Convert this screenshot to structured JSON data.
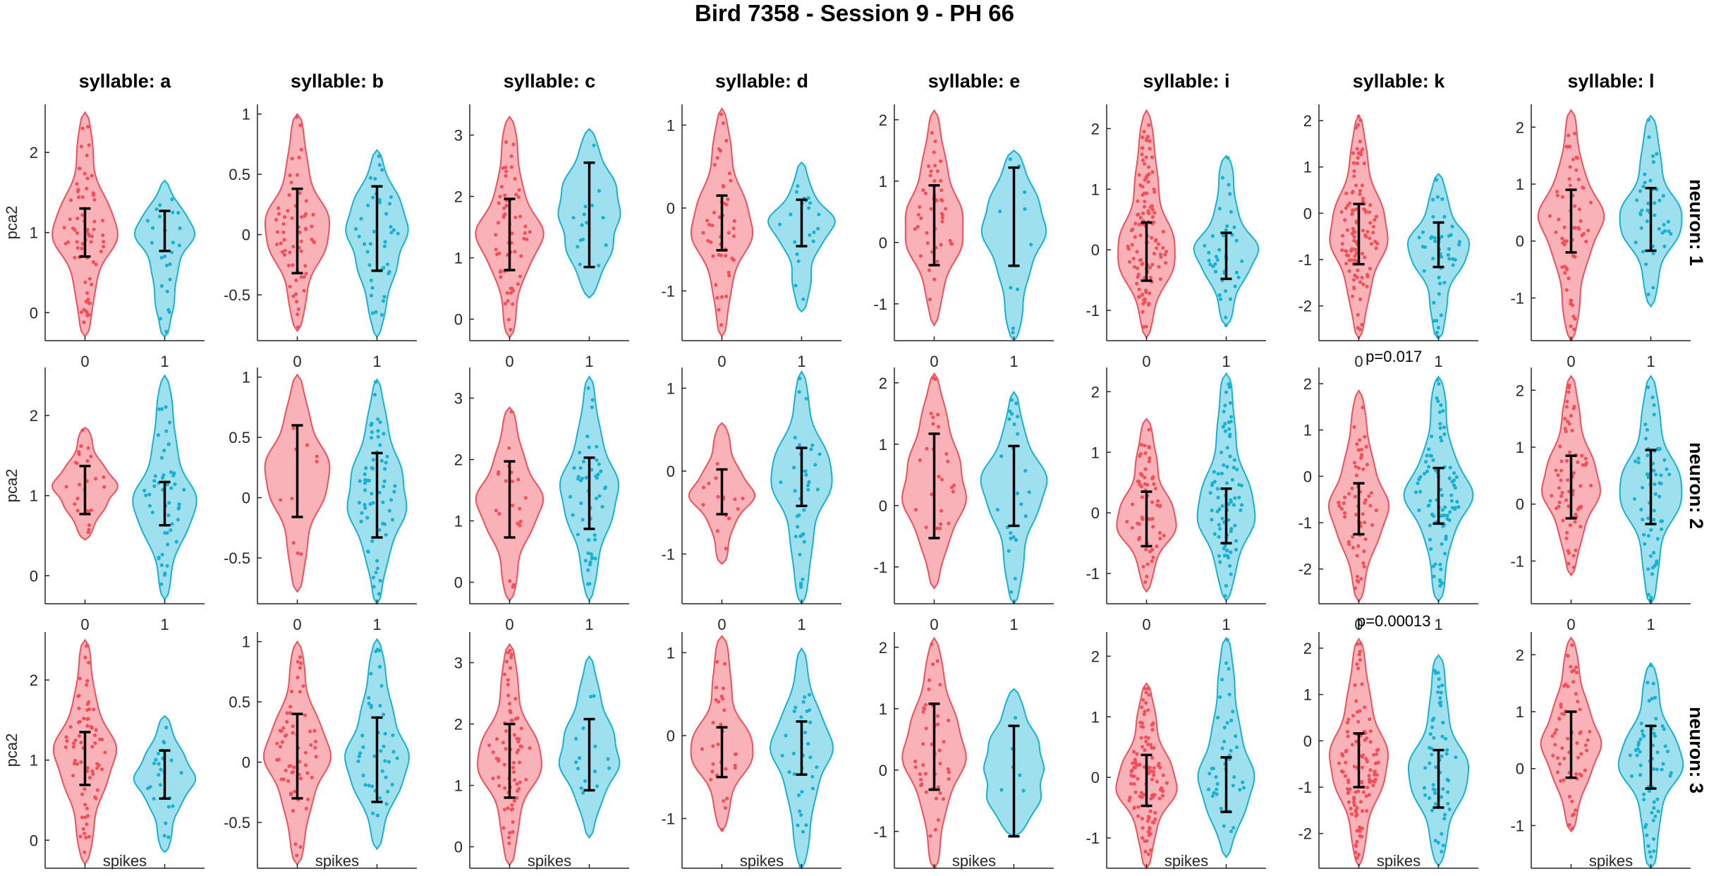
{
  "figure_title": "Bird 7358 - Session 9 - PH 66",
  "colors": {
    "group0_fill": "#f9b3b8",
    "group0_edge": "#f0505a",
    "group1_fill": "#9fe0ef",
    "group1_edge": "#1ab0cf",
    "error_bar": "#000000",
    "axis": "#262626"
  },
  "chart_data": {
    "type": "violin",
    "xlabel": "spikes",
    "ylabel": "pca2",
    "x_categories": [
      "0",
      "1"
    ],
    "columns": [
      "syllable: a",
      "syllable: b",
      "syllable: c",
      "syllable: d",
      "syllable: e",
      "syllable: i",
      "syllable: k",
      "syllable: l"
    ],
    "rows": [
      "neuron: 1",
      "neuron: 2",
      "neuron: 3"
    ],
    "panels": [
      [
        {
          "ylim": [
            -0.35,
            2.6
          ],
          "yticks": [
            0,
            1,
            2
          ],
          "groups": [
            {
              "mean": 1.0,
              "err": 0.3,
              "min": -0.3,
              "max": 2.5,
              "n": 70
            },
            {
              "mean": 1.02,
              "err": 0.25,
              "min": -0.3,
              "max": 1.65,
              "n": 25
            }
          ],
          "p": ""
        },
        {
          "ylim": [
            -0.88,
            1.08
          ],
          "yticks": [
            -0.5,
            0,
            0.5,
            1
          ],
          "groups": [
            {
              "mean": 0.03,
              "err": 0.35,
              "min": -0.8,
              "max": 1.0,
              "n": 60
            },
            {
              "mean": 0.05,
              "err": 0.35,
              "min": -0.85,
              "max": 0.7,
              "n": 40
            }
          ],
          "p": ""
        },
        {
          "ylim": [
            -0.35,
            3.5
          ],
          "yticks": [
            0,
            1,
            2,
            3
          ],
          "groups": [
            {
              "mean": 1.38,
              "err": 0.58,
              "min": -0.3,
              "max": 3.3,
              "n": 60
            },
            {
              "mean": 1.7,
              "err": 0.85,
              "min": 0.35,
              "max": 3.1,
              "n": 15
            }
          ],
          "p": ""
        },
        {
          "ylim": [
            -1.6,
            1.25
          ],
          "yticks": [
            -1,
            0,
            1
          ],
          "groups": [
            {
              "mean": -0.18,
              "err": 0.33,
              "min": -1.55,
              "max": 1.2,
              "n": 45
            },
            {
              "mean": -0.18,
              "err": 0.28,
              "min": -1.25,
              "max": 0.55,
              "n": 20
            }
          ],
          "p": ""
        },
        {
          "ylim": [
            -1.6,
            2.25
          ],
          "yticks": [
            -1,
            0,
            1,
            2
          ],
          "groups": [
            {
              "mean": 0.28,
              "err": 0.65,
              "min": -1.35,
              "max": 2.15,
              "n": 45
            },
            {
              "mean": 0.42,
              "err": 0.8,
              "min": -1.6,
              "max": 1.5,
              "n": 10
            }
          ],
          "p": ""
        },
        {
          "ylim": [
            -1.5,
            2.4
          ],
          "yticks": [
            -1,
            0,
            1,
            2
          ],
          "groups": [
            {
              "mean": -0.03,
              "err": 0.48,
              "min": -1.45,
              "max": 2.3,
              "n": 120
            },
            {
              "mean": -0.1,
              "err": 0.38,
              "min": -1.25,
              "max": 1.55,
              "n": 40
            }
          ],
          "p": ""
        },
        {
          "ylim": [
            -2.75,
            2.35
          ],
          "yticks": [
            -2,
            -1,
            0,
            1,
            2
          ],
          "groups": [
            {
              "mean": -0.45,
              "err": 0.65,
              "min": -2.7,
              "max": 2.1,
              "n": 110
            },
            {
              "mean": -0.68,
              "err": 0.48,
              "min": -2.7,
              "max": 0.85,
              "n": 45
            }
          ],
          "p": ""
        },
        {
          "ylim": [
            -1.75,
            2.4
          ],
          "yticks": [
            -1,
            0,
            1,
            2
          ],
          "groups": [
            {
              "mean": 0.35,
              "err": 0.55,
              "min": -1.75,
              "max": 2.3,
              "n": 60
            },
            {
              "mean": 0.38,
              "err": 0.55,
              "min": -1.15,
              "max": 2.2,
              "n": 40
            }
          ],
          "p": ""
        }
      ],
      [
        {
          "ylim": [
            -0.35,
            2.6
          ],
          "yticks": [
            0,
            1,
            2
          ],
          "groups": [
            {
              "mean": 1.07,
              "err": 0.3,
              "min": 0.45,
              "max": 1.85,
              "n": 25
            },
            {
              "mean": 0.9,
              "err": 0.27,
              "min": -0.3,
              "max": 2.5,
              "n": 50
            }
          ],
          "p": ""
        },
        {
          "ylim": [
            -0.88,
            1.08
          ],
          "yticks": [
            -0.5,
            0,
            0.5,
            1
          ],
          "groups": [
            {
              "mean": 0.22,
              "err": 0.38,
              "min": -0.78,
              "max": 1.02,
              "n": 10
            },
            {
              "mean": 0.02,
              "err": 0.35,
              "min": -0.88,
              "max": 0.98,
              "n": 60
            }
          ],
          "p": ""
        },
        {
          "ylim": [
            -0.35,
            3.5
          ],
          "yticks": [
            0,
            1,
            2,
            3
          ],
          "groups": [
            {
              "mean": 1.35,
              "err": 0.62,
              "min": -0.3,
              "max": 2.85,
              "n": 20
            },
            {
              "mean": 1.45,
              "err": 0.58,
              "min": -0.3,
              "max": 3.35,
              "n": 50
            }
          ],
          "p": ""
        },
        {
          "ylim": [
            -1.6,
            1.25
          ],
          "yticks": [
            -1,
            0,
            1
          ],
          "groups": [
            {
              "mean": -0.25,
              "err": 0.27,
              "min": -1.12,
              "max": 0.58,
              "n": 15
            },
            {
              "mean": -0.07,
              "err": 0.35,
              "min": -1.6,
              "max": 1.2,
              "n": 35
            }
          ],
          "p": ""
        },
        {
          "ylim": [
            -1.6,
            2.25
          ],
          "yticks": [
            -1,
            0,
            1,
            2
          ],
          "groups": [
            {
              "mean": 0.32,
              "err": 0.85,
              "min": -1.35,
              "max": 2.15,
              "n": 25
            },
            {
              "mean": 0.32,
              "err": 0.65,
              "min": -1.6,
              "max": 1.85,
              "n": 25
            }
          ],
          "p": ""
        },
        {
          "ylim": [
            -1.5,
            2.4
          ],
          "yticks": [
            -1,
            0,
            1,
            2
          ],
          "groups": [
            {
              "mean": -0.1,
              "err": 0.45,
              "min": -1.3,
              "max": 1.55,
              "n": 60
            },
            {
              "mean": -0.05,
              "err": 0.45,
              "min": -1.45,
              "max": 2.3,
              "n": 80
            }
          ],
          "p": ""
        },
        {
          "ylim": [
            -2.75,
            2.35
          ],
          "yticks": [
            -2,
            -1,
            0,
            1,
            2
          ],
          "groups": [
            {
              "mean": -0.7,
              "err": 0.55,
              "min": -2.7,
              "max": 1.85,
              "n": 60
            },
            {
              "mean": -0.42,
              "err": 0.6,
              "min": -2.7,
              "max": 2.15,
              "n": 90
            }
          ],
          "p": "p=0.017"
        },
        {
          "ylim": [
            -1.75,
            2.4
          ],
          "yticks": [
            -1,
            0,
            1,
            2
          ],
          "groups": [
            {
              "mean": 0.3,
              "err": 0.55,
              "min": -1.25,
              "max": 2.25,
              "n": 70
            },
            {
              "mean": 0.3,
              "err": 0.65,
              "min": -1.75,
              "max": 2.25,
              "n": 60
            }
          ],
          "p": ""
        }
      ],
      [
        {
          "ylim": [
            -0.35,
            2.6
          ],
          "yticks": [
            0,
            1,
            2
          ],
          "groups": [
            {
              "mean": 1.02,
              "err": 0.33,
              "min": -0.3,
              "max": 2.5,
              "n": 70
            },
            {
              "mean": 0.82,
              "err": 0.3,
              "min": -0.15,
              "max": 1.55,
              "n": 25
            }
          ],
          "p": ""
        },
        {
          "ylim": [
            -0.88,
            1.08
          ],
          "yticks": [
            -0.5,
            0,
            0.5,
            1
          ],
          "groups": [
            {
              "mean": 0.05,
              "err": 0.35,
              "min": -0.85,
              "max": 1.0,
              "n": 60
            },
            {
              "mean": 0.02,
              "err": 0.35,
              "min": -0.72,
              "max": 1.02,
              "n": 40
            }
          ],
          "p": ""
        },
        {
          "ylim": [
            -0.35,
            3.5
          ],
          "yticks": [
            0,
            1,
            2,
            3
          ],
          "groups": [
            {
              "mean": 1.4,
              "err": 0.6,
              "min": -0.3,
              "max": 3.3,
              "n": 70
            },
            {
              "mean": 1.5,
              "err": 0.58,
              "min": 0.15,
              "max": 3.1,
              "n": 15
            }
          ],
          "p": ""
        },
        {
          "ylim": [
            -1.6,
            1.25
          ],
          "yticks": [
            -1,
            0,
            1
          ],
          "groups": [
            {
              "mean": -0.2,
              "err": 0.3,
              "min": -1.15,
              "max": 1.2,
              "n": 30
            },
            {
              "mean": -0.15,
              "err": 0.32,
              "min": -1.6,
              "max": 1.05,
              "n": 30
            }
          ],
          "p": ""
        },
        {
          "ylim": [
            -1.6,
            2.25
          ],
          "yticks": [
            -1,
            0,
            1,
            2
          ],
          "groups": [
            {
              "mean": 0.38,
              "err": 0.7,
              "min": -1.6,
              "max": 2.15,
              "n": 45
            },
            {
              "mean": -0.18,
              "err": 0.9,
              "min": -1.08,
              "max": 1.32,
              "n": 6
            }
          ],
          "p": ""
        },
        {
          "ylim": [
            -1.5,
            2.4
          ],
          "yticks": [
            -1,
            0,
            1,
            2
          ],
          "groups": [
            {
              "mean": -0.05,
              "err": 0.42,
              "min": -1.5,
              "max": 1.55,
              "n": 110
            },
            {
              "mean": -0.12,
              "err": 0.45,
              "min": -1.32,
              "max": 2.3,
              "n": 40
            }
          ],
          "p": ""
        },
        {
          "ylim": [
            -2.75,
            2.35
          ],
          "yticks": [
            -2,
            -1,
            0,
            1,
            2
          ],
          "groups": [
            {
              "mean": -0.42,
              "err": 0.58,
              "min": -2.7,
              "max": 2.2,
              "n": 110
            },
            {
              "mean": -0.82,
              "err": 0.62,
              "min": -2.7,
              "max": 1.85,
              "n": 55
            }
          ],
          "p": "p=0.00013"
        },
        {
          "ylim": [
            -1.75,
            2.4
          ],
          "yticks": [
            -1,
            0,
            1,
            2
          ],
          "groups": [
            {
              "mean": 0.42,
              "err": 0.58,
              "min": -1.1,
              "max": 2.3,
              "n": 60
            },
            {
              "mean": 0.2,
              "err": 0.55,
              "min": -1.75,
              "max": 1.85,
              "n": 60
            }
          ],
          "p": ""
        }
      ]
    ]
  }
}
